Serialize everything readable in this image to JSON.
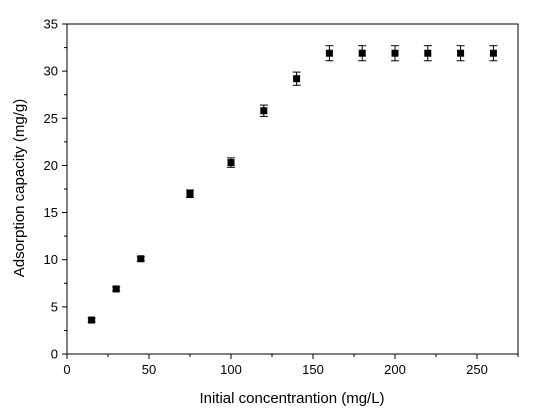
{
  "chart_data": {
    "type": "scatter",
    "title": "",
    "xlabel": "Initial concentrantion (mg/L)",
    "ylabel": "Adsorption capacity (mg/g)",
    "xlim": [
      0,
      275
    ],
    "ylim": [
      0,
      35
    ],
    "xticks": [
      0,
      50,
      100,
      150,
      200,
      250
    ],
    "yticks": [
      0,
      5,
      10,
      15,
      20,
      25,
      30,
      35
    ],
    "grid": false,
    "marker": "square",
    "marker_color": "#000000",
    "error_bars": true,
    "series": [
      {
        "x": [
          15,
          30,
          45,
          75,
          100,
          120,
          140,
          160,
          180,
          200,
          220,
          240,
          260
        ],
        "y": [
          3.6,
          6.9,
          10.1,
          17.0,
          20.3,
          25.8,
          29.2,
          31.9,
          31.9,
          31.9,
          31.9,
          31.9,
          31.9
        ],
        "error": [
          0.2,
          0.2,
          0.2,
          0.4,
          0.5,
          0.6,
          0.7,
          0.8,
          0.8,
          0.8,
          0.8,
          0.8,
          0.8
        ]
      }
    ]
  }
}
